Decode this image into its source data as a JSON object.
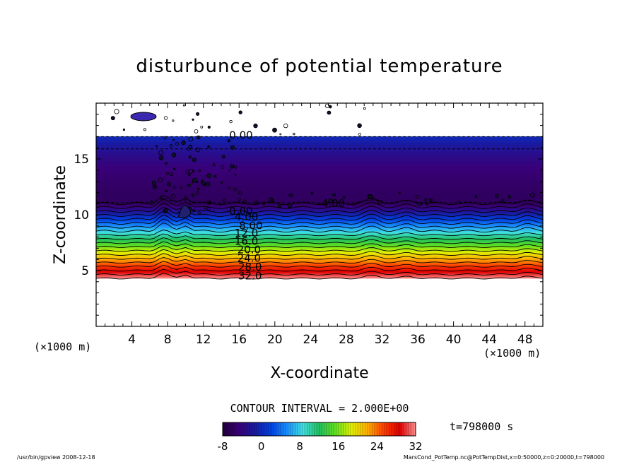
{
  "chart_data": {
    "type": "heatmap",
    "title": "disturbunce of potential temperature",
    "xlabel": "X-coordinate",
    "ylabel": "Z-coordinate",
    "x_unit_label_left": "(×1000 m)",
    "x_unit_label_right": "(×1000 m)",
    "xlim": [
      0,
      50
    ],
    "ylim": [
      0,
      20
    ],
    "x_ticks": [
      "4",
      "8",
      "12",
      "16",
      "20",
      "24",
      "28",
      "32",
      "36",
      "40",
      "44",
      "48"
    ],
    "y_ticks": [
      "5",
      "10",
      "15"
    ],
    "contour_interval_text": "CONTOUR INTERVAL = 2.000E+00",
    "time_text": "t=798000 s",
    "colorbar": {
      "min": -8,
      "max": 32,
      "tick_labels": [
        "-8",
        "0",
        "8",
        "16",
        "24",
        "32"
      ],
      "colors": [
        "#20003a",
        "#3a0078",
        "#1a1aa0",
        "#0040e0",
        "#1a90ff",
        "#40e0e0",
        "#20c060",
        "#60e020",
        "#e0f000",
        "#ffb000",
        "#ff4000",
        "#e00000",
        "#ff9090"
      ]
    },
    "contour_labels": [
      "0.00",
      "-4.00",
      "-4.00",
      "0.00",
      "4.00",
      "8.00",
      "12.0",
      "16.0",
      "20.0",
      "24.0",
      "28.0",
      "32.0"
    ],
    "profile": {
      "z_top_layer_km": 17.0,
      "z_cold_layer_base_km": 11.0,
      "z_warm_bottom_km": 4.3,
      "value_at_top": 0,
      "value_in_upper_layer": -6,
      "value_at_bottom": 32
    },
    "footer_left": "/usr/bin/gpview   2008-12-18",
    "footer_right": "MarsCond_PotTemp.nc@PotTempDist,x=0:50000,z=0:20000,t=798000"
  }
}
